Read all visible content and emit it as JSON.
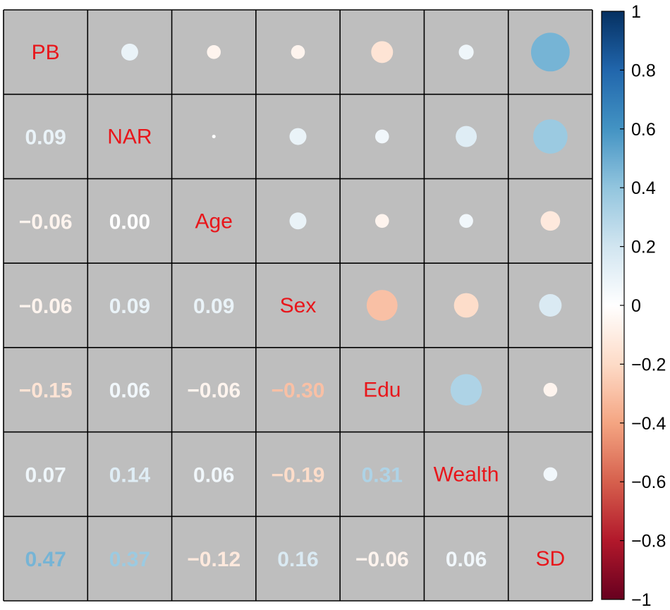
{
  "chart_data": {
    "type": "heatmap",
    "variables": [
      "PB",
      "NAR",
      "Age",
      "Sex",
      "Edu",
      "Wealth",
      "SD"
    ],
    "matrix": [
      [
        1.0,
        0.09,
        -0.06,
        -0.06,
        -0.15,
        0.07,
        0.47
      ],
      [
        0.09,
        1.0,
        0.0,
        0.09,
        0.06,
        0.14,
        0.37
      ],
      [
        -0.06,
        0.0,
        1.0,
        0.09,
        -0.06,
        0.06,
        -0.12
      ],
      [
        -0.06,
        0.09,
        0.09,
        1.0,
        -0.3,
        -0.19,
        0.16
      ],
      [
        -0.15,
        0.06,
        -0.06,
        -0.3,
        1.0,
        0.31,
        -0.06
      ],
      [
        0.07,
        0.14,
        0.06,
        -0.19,
        0.31,
        1.0,
        0.06
      ],
      [
        0.47,
        0.37,
        -0.12,
        0.16,
        -0.06,
        0.06,
        1.0
      ]
    ],
    "upper_triangle": "circle",
    "lower_triangle": "number",
    "diagonal": "variable names",
    "colorbar": {
      "range": [
        -1,
        1
      ],
      "ticks": [
        "1",
        "0.8",
        "0.6",
        "0.4",
        "0.2",
        "0",
        "−0.2",
        "−0.4",
        "−0.6",
        "−0.8",
        "−1"
      ],
      "tick_values": [
        1,
        0.8,
        0.6,
        0.4,
        0.2,
        0,
        -0.2,
        -0.4,
        -0.6,
        -0.8,
        -1
      ],
      "placement": "right"
    },
    "colors": {
      "cell_background": "#bebebe",
      "grid_line": "#000000",
      "diagonal_label": "#e8161b",
      "scale_negative_end": "#67001f",
      "scale_mid": "#ffffff",
      "scale_positive_end": "#053061"
    }
  }
}
